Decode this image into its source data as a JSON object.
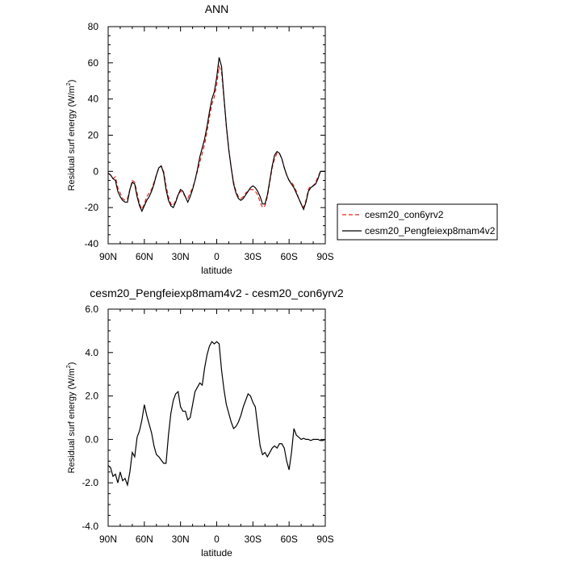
{
  "chart_data": [
    {
      "type": "line",
      "title": "ANN",
      "xlabel": "latitude",
      "ylabel_main": "Residual surf energy (W/m",
      "ylabel_sup": "2",
      "ylabel_close": ")",
      "xlim": [
        90,
        -90
      ],
      "ylim": [
        -40,
        80
      ],
      "x_ticks": [
        90,
        60,
        30,
        0,
        -30,
        -60,
        -90
      ],
      "x_tick_labels": [
        "90N",
        "60N",
        "30N",
        "0",
        "30S",
        "60S",
        "90S"
      ],
      "y_ticks": [
        -40,
        -20,
        0,
        20,
        40,
        60,
        80
      ],
      "y_tick_labels": [
        "-40",
        "-20",
        "0",
        "20",
        "40",
        "60",
        "80"
      ],
      "legend": {
        "placement": "right",
        "entries": [
          {
            "name": "cesm20_con6yrv2",
            "color": "#e8261e",
            "dashed": true
          },
          {
            "name": "cesm20_Pengfeiexp8mam4v2",
            "color": "#000000",
            "dashed": false
          }
        ]
      },
      "x": [
        90,
        88,
        86,
        84,
        82,
        80,
        78,
        76,
        74,
        72,
        70,
        68,
        66,
        64,
        62,
        60,
        58,
        56,
        54,
        52,
        50,
        48,
        46,
        44,
        42,
        40,
        38,
        36,
        34,
        32,
        30,
        28,
        26,
        24,
        22,
        20,
        18,
        16,
        14,
        12,
        10,
        8,
        6,
        4,
        2,
        0,
        -2,
        -4,
        -6,
        -8,
        -10,
        -12,
        -14,
        -16,
        -18,
        -20,
        -22,
        -24,
        -26,
        -28,
        -30,
        -32,
        -34,
        -36,
        -38,
        -40,
        -42,
        -44,
        -46,
        -48,
        -50,
        -52,
        -54,
        -56,
        -58,
        -60,
        -62,
        -64,
        -66,
        -68,
        -70,
        -72,
        -74,
        -76,
        -78,
        -80,
        -82,
        -84,
        -86,
        -88,
        -90
      ],
      "series": [
        {
          "name": "cesm20_con6yrv2",
          "color": "#e8261e",
          "dashed": true,
          "values": [
            -1,
            -2,
            -4,
            -3,
            -9,
            -12,
            -15,
            -16,
            -15,
            -10,
            -5,
            -6,
            -12,
            -18,
            -21,
            -18,
            -14,
            -12,
            -10,
            -6,
            -2,
            2,
            3,
            0,
            -8,
            -14,
            -18,
            -19,
            -16,
            -13,
            -11,
            -12,
            -14,
            -15,
            -12,
            -9,
            -5,
            0,
            5,
            10,
            15,
            22,
            30,
            37,
            41,
            48,
            58,
            55,
            40,
            25,
            12,
            2,
            -6,
            -11,
            -14,
            -15,
            -14,
            -12,
            -11,
            -10,
            -10,
            -11,
            -13,
            -17,
            -20,
            -19,
            -14,
            -6,
            2,
            7,
            10,
            10,
            7,
            2,
            -2,
            -5,
            -6,
            -8,
            -11,
            -15,
            -18,
            -20,
            -16,
            -10,
            -8,
            -8,
            -6,
            -3,
            0,
            0,
            0
          ]
        },
        {
          "name": "cesm20_Pengfeiexp8mam4v2",
          "color": "#000000",
          "dashed": false,
          "values": [
            -1,
            -2,
            -4,
            -5,
            -11,
            -14,
            -16,
            -17,
            -17,
            -10,
            -6,
            -7,
            -14,
            -19,
            -22,
            -19,
            -16,
            -14,
            -11,
            -7,
            -2,
            2,
            3,
            -1,
            -10,
            -16,
            -19,
            -20,
            -17,
            -13,
            -10,
            -11,
            -14,
            -17,
            -14,
            -10,
            -5,
            1,
            8,
            13,
            18,
            25,
            33,
            40,
            44,
            52,
            63,
            58,
            41,
            25,
            12,
            2,
            -7,
            -12,
            -15,
            -16,
            -15,
            -13,
            -11,
            -9,
            -8,
            -9,
            -11,
            -14,
            -18,
            -18,
            -13,
            -5,
            3,
            9,
            11,
            10,
            7,
            2,
            -2,
            -5,
            -7,
            -9,
            -12,
            -15,
            -18,
            -21,
            -17,
            -11,
            -9,
            -8,
            -7,
            -4,
            0,
            0,
            0
          ]
        }
      ]
    },
    {
      "type": "line",
      "title": "cesm20_Pengfeiexp8mam4v2 - cesm20_con6yrv2",
      "xlabel": "latitude",
      "ylabel_main": "Residual surf energy (W/m",
      "ylabel_sup": "2",
      "ylabel_close": ")",
      "xlim": [
        90,
        -90
      ],
      "ylim": [
        -4,
        6
      ],
      "x_ticks": [
        90,
        60,
        30,
        0,
        -30,
        -60,
        -90
      ],
      "x_tick_labels": [
        "90N",
        "60N",
        "30N",
        "0",
        "30S",
        "60S",
        "90S"
      ],
      "y_ticks": [
        -4,
        -2,
        0,
        2,
        4,
        6
      ],
      "y_tick_labels": [
        "-4.0",
        "-2.0",
        "0.0",
        "2.0",
        "4.0",
        "6.0"
      ],
      "x": [
        90,
        88,
        86,
        84,
        82,
        80,
        78,
        76,
        74,
        72,
        70,
        68,
        66,
        64,
        62,
        60,
        58,
        56,
        54,
        52,
        50,
        48,
        46,
        44,
        42,
        40,
        38,
        36,
        34,
        32,
        30,
        28,
        26,
        24,
        22,
        20,
        18,
        16,
        14,
        12,
        10,
        8,
        6,
        4,
        2,
        0,
        -2,
        -4,
        -6,
        -8,
        -10,
        -12,
        -14,
        -16,
        -18,
        -20,
        -22,
        -24,
        -26,
        -28,
        -30,
        -32,
        -34,
        -36,
        -38,
        -40,
        -42,
        -44,
        -46,
        -48,
        -50,
        -52,
        -54,
        -56,
        -58,
        -60,
        -62,
        -64,
        -66,
        -68,
        -70,
        -72,
        -74,
        -76,
        -78,
        -80,
        -82,
        -84,
        -86,
        -88,
        -90
      ],
      "series": [
        {
          "name": "",
          "color": "#000000",
          "dashed": false,
          "values": [
            -1.2,
            -1.3,
            -1.7,
            -1.6,
            -2.0,
            -1.5,
            -1.9,
            -1.8,
            -2.1,
            -1.5,
            -0.6,
            -0.8,
            0.1,
            0.4,
            0.9,
            1.6,
            1.1,
            0.7,
            0.3,
            -0.3,
            -0.7,
            -0.8,
            -0.95,
            -1.1,
            -1.1,
            0.2,
            1.2,
            1.8,
            2.1,
            2.2,
            1.5,
            1.3,
            1.3,
            0.9,
            1.0,
            1.6,
            2.2,
            2.4,
            2.6,
            2.5,
            3.3,
            3.9,
            4.3,
            4.5,
            4.4,
            4.5,
            4.4,
            3.2,
            2.3,
            1.6,
            1.2,
            0.8,
            0.5,
            0.6,
            0.8,
            1.1,
            1.5,
            1.8,
            2.1,
            2.0,
            1.7,
            1.5,
            0.6,
            -0.3,
            -0.7,
            -0.6,
            -0.8,
            -0.6,
            -0.4,
            -0.3,
            -0.4,
            -0.2,
            -0.2,
            -0.4,
            -1.0,
            -1.4,
            -0.6,
            0.5,
            0.2,
            0.1,
            0.0,
            0.05,
            0.0,
            0.0,
            -0.05,
            0.0,
            0.0,
            0.0,
            -0.05,
            -0.05,
            0.0
          ]
        }
      ]
    }
  ]
}
